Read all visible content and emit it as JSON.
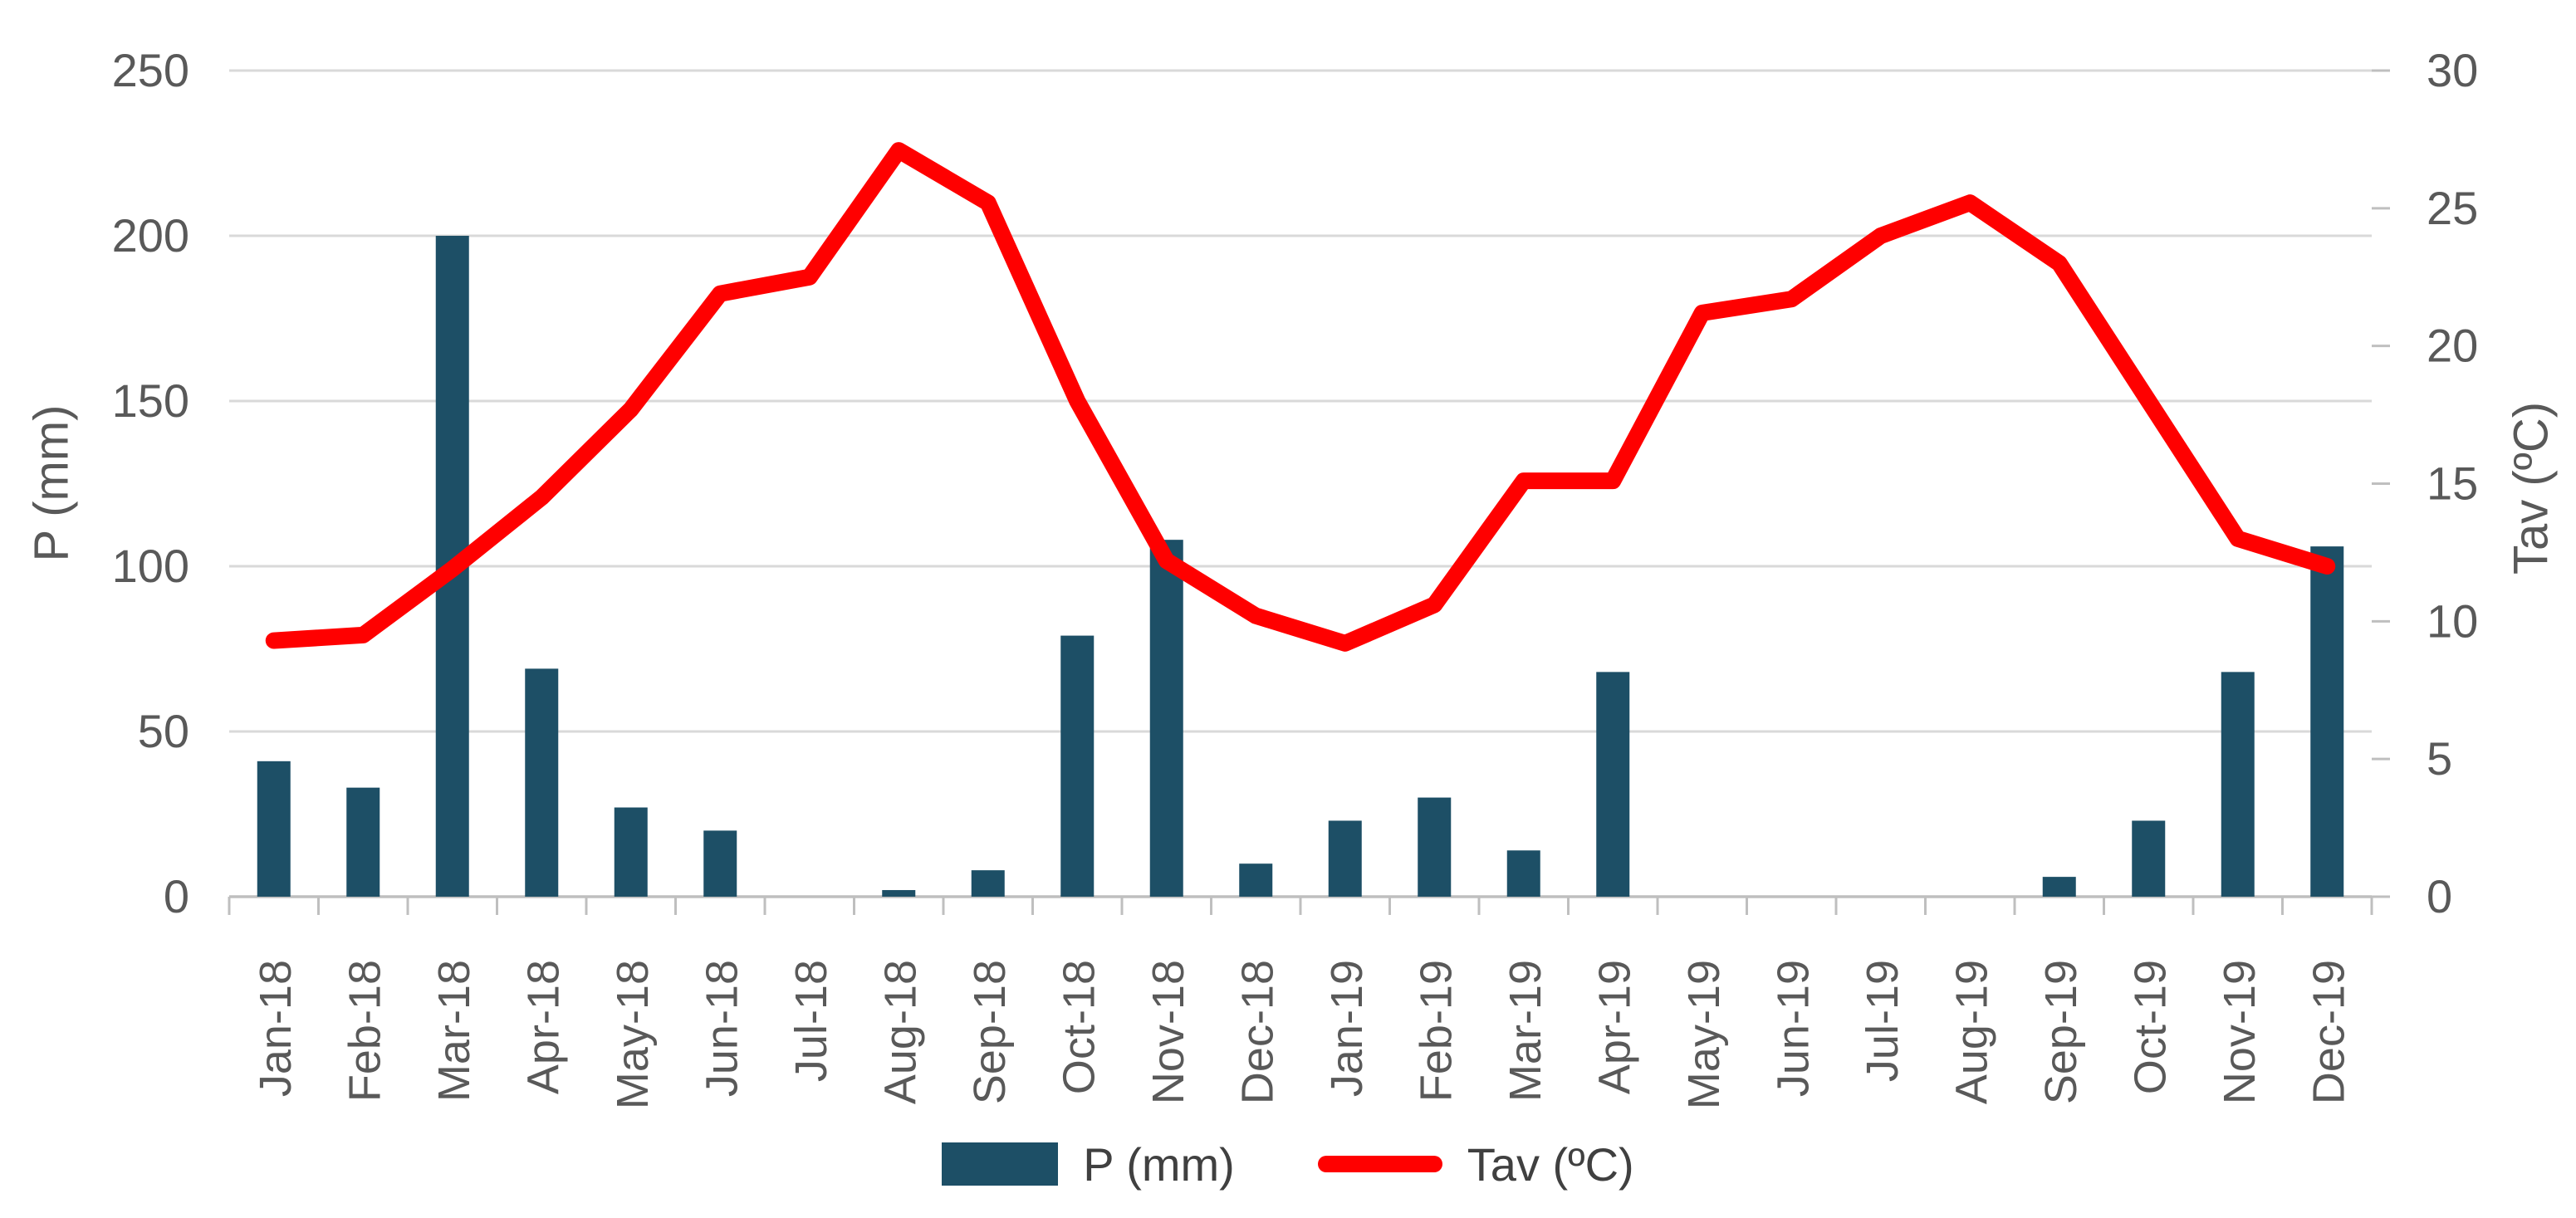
{
  "chart_data": {
    "type": "combo-bar-line",
    "title": "",
    "categories": [
      "Jan-18",
      "Feb-18",
      "Mar-18",
      "Apr-18",
      "May-18",
      "Jun-18",
      "Jul-18",
      "Aug-18",
      "Sep-18",
      "Oct-18",
      "Nov-18",
      "Dec-18",
      "Jan-19",
      "Feb-19",
      "Mar-19",
      "Apr-19",
      "May-19",
      "Jun-19",
      "Jul-19",
      "Aug-19",
      "Sep-19",
      "Oct-19",
      "Nov-19",
      "Dec-19"
    ],
    "series": [
      {
        "name": "P (mm)",
        "type": "bar",
        "axis": "left",
        "color": "#1D4F66",
        "values": [
          41,
          33,
          200,
          69,
          27,
          20,
          0,
          2,
          8,
          79,
          108,
          10,
          23,
          30,
          14,
          68,
          0,
          0,
          0,
          0,
          6,
          23,
          68,
          106
        ]
      },
      {
        "name": "Tav (ºC)",
        "type": "line",
        "axis": "right",
        "color": "#FF0000",
        "values": [
          9.3,
          9.5,
          11.9,
          14.5,
          17.7,
          21.9,
          22.5,
          27.1,
          25.2,
          18.0,
          12.2,
          10.2,
          9.2,
          10.6,
          15.1,
          15.1,
          21.2,
          21.7,
          24.0,
          25.2,
          23.0,
          18.0,
          13.0,
          12.0
        ]
      }
    ],
    "left_axis": {
      "label": "P (mm)",
      "min": 0,
      "max": 250,
      "step": 50,
      "tick_labels": [
        "0",
        "50",
        "100",
        "150",
        "200",
        "250"
      ]
    },
    "right_axis": {
      "label": "Tav (ºC)",
      "min": 0,
      "max": 30,
      "step": 5,
      "tick_labels": [
        "0",
        "5",
        "10",
        "15",
        "20",
        "25",
        "30"
      ]
    },
    "legend": {
      "position": "bottom",
      "items": [
        {
          "label": "P (mm)",
          "marker": "bar-swatch"
        },
        {
          "label": "Tav (ºC)",
          "marker": "line-swatch"
        }
      ]
    },
    "grid": {
      "horizontal": true,
      "vertical": false
    },
    "colors": {
      "background": "#FFFFFF",
      "gridline": "#D9D9D9",
      "axis_line": "#BFBFBF",
      "tick_text": "#595959",
      "legend_text": "#404040"
    }
  }
}
